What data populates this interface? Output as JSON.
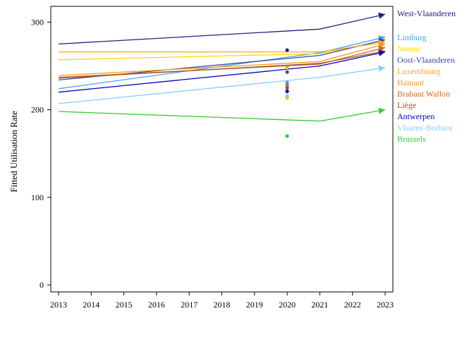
{
  "chart_data": {
    "type": "line",
    "title": "",
    "xlabel": "",
    "ylabel": "Fitted Utilisation Rate",
    "xlim": [
      2013,
      2023
    ],
    "ylim": [
      -8,
      318
    ],
    "x_ticks": [
      "2013",
      "2014",
      "2015",
      "2016",
      "2017",
      "2018",
      "2019",
      "2020",
      "2021",
      "2022",
      "2023"
    ],
    "y_ticks": [
      "0",
      "100",
      "200",
      "300"
    ],
    "grid": false,
    "legend_placement": "right",
    "series": [
      {
        "name": "West-Vlaanderen",
        "color": "#1a237e",
        "x": [
          2013,
          2021,
          2023
        ],
        "values": [
          275,
          292,
          309
        ],
        "point_2020": null
      },
      {
        "name": "Limburg",
        "color": "#42a5f5",
        "x": [
          2013,
          2021,
          2023
        ],
        "values": [
          224,
          265,
          283
        ],
        "point_2020": 231
      },
      {
        "name": "Namur",
        "color": "#ffd600",
        "x": [
          2013,
          2021,
          2023
        ],
        "values": [
          257,
          264,
          279
        ],
        "point_2020": 213
      },
      {
        "name": "Oost-Vlaanderen",
        "color": "#3949ab",
        "x": [
          2013,
          2021,
          2023
        ],
        "values": [
          234,
          262,
          280
        ],
        "point_2020": 243
      },
      {
        "name": "Luxembourg",
        "color": "#f9a825",
        "x": [
          2013,
          2021,
          2023
        ],
        "values": [
          266,
          266,
          277
        ],
        "point_2020": 248
      },
      {
        "name": "Hainaut",
        "color": "#f39c12",
        "x": [
          2013,
          2021,
          2023
        ],
        "values": [
          239,
          255,
          275
        ],
        "point_2020": 215
      },
      {
        "name": "Brabant Wallon",
        "color": "#d2691e",
        "x": [
          2013,
          2021,
          2023
        ],
        "values": [
          237,
          252,
          271
        ],
        "point_2020": 228
      },
      {
        "name": "Liège",
        "color": "#a0522d",
        "x": [
          2013,
          2021,
          2023
        ],
        "values": [
          236,
          253,
          267
        ],
        "point_2020": 225
      },
      {
        "name": "Antwerpen",
        "color": "#0000cd",
        "x": [
          2013,
          2021,
          2023
        ],
        "values": [
          220,
          250,
          266
        ],
        "point_2020": 221
      },
      {
        "name": "Vlaams-Brabant",
        "color": "#87cefa",
        "x": [
          2013,
          2021,
          2023
        ],
        "values": [
          207,
          237,
          248
        ],
        "point_2020": 216
      },
      {
        "name": "Brussels",
        "color": "#32cd32",
        "x": [
          2013,
          2021,
          2023
        ],
        "values": [
          198,
          187,
          200
        ],
        "point_2020": 170
      }
    ],
    "extra_point_2020": {
      "color": "#1a237e",
      "value": 268
    }
  }
}
